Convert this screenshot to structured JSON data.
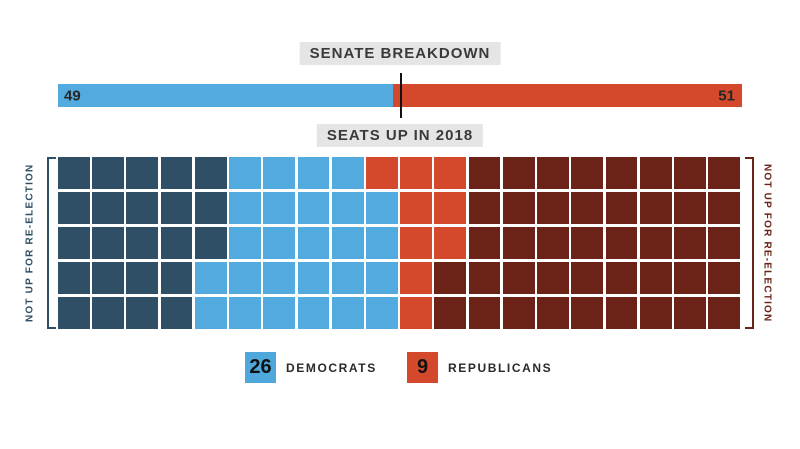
{
  "header": {
    "title": "SENATE BREAKDOWN"
  },
  "senate_bar": {
    "dem_value": "49",
    "rep_value": "51"
  },
  "seats_section": {
    "title": "SEATS UP IN 2018",
    "left_note": "NOT UP FOR RE-ELECTION",
    "right_note": "NOT UP FOR RE-ELECTION"
  },
  "legend": {
    "items": [
      {
        "count": "26",
        "label": "DEMOCRATS",
        "color": "#4FA8DC"
      },
      {
        "count": "9",
        "label": "REPUBLICANS",
        "color": "#D4492B"
      }
    ]
  },
  "colors": {
    "dem_dark": "#2E4F66",
    "dem_light": "#52AADF",
    "rep_bright": "#D4492B",
    "rep_dark": "#6B2317",
    "badge_bg": "#E5E5E5",
    "badge_text": "#3A3A3A",
    "divider": "#111111"
  },
  "chart_data": [
    {
      "type": "bar",
      "subtype": "horizontal_stacked",
      "title": "SENATE BREAKDOWN",
      "categories": [
        "Democrats",
        "Republicans"
      ],
      "values": [
        49,
        51
      ],
      "total": 100,
      "colors": [
        "#52AADF",
        "#D4492B"
      ],
      "data_labels": [
        "49",
        "51"
      ],
      "annotations": [
        {
          "label": "midpoint marker",
          "x": 50
        }
      ],
      "xlim": [
        0,
        100
      ],
      "grid": false,
      "legend_position": "none"
    },
    {
      "type": "heatmap",
      "subtype": "waffle",
      "title": "SEATS UP IN 2018",
      "rows": 5,
      "cols": 20,
      "total_cells": 100,
      "categories": [
        {
          "key": "D",
          "label": "Democrats not up for re-election",
          "count": 23,
          "color": "#2E4F66"
        },
        {
          "key": "L",
          "label": "Democrats up in 2018",
          "count": 26,
          "color": "#52AADF"
        },
        {
          "key": "R",
          "label": "Republicans up in 2018",
          "count": 9,
          "color": "#D4492B"
        },
        {
          "key": "M",
          "label": "Republicans not up for re-election",
          "count": 42,
          "color": "#6B2317"
        }
      ],
      "matrix": [
        "DDDDDLLLLRRRMMMMMMMM",
        "DDDDDLLLLLRRMMMMMMMM",
        "DDDDDLLLLLRRMMMMMMMM",
        "DDDDLLLLLLRMMMMMMMMM",
        "DDDDLLLLLLRMMMMMMMMM"
      ],
      "side_labels": {
        "left": "NOT UP FOR RE-ELECTION",
        "right": "NOT UP FOR RE-ELECTION"
      },
      "legend_entries": [
        {
          "count": "26",
          "label": "DEMOCRATS"
        },
        {
          "count": "9",
          "label": "REPUBLICANS"
        }
      ],
      "legend_position": "bottom-center"
    }
  ]
}
